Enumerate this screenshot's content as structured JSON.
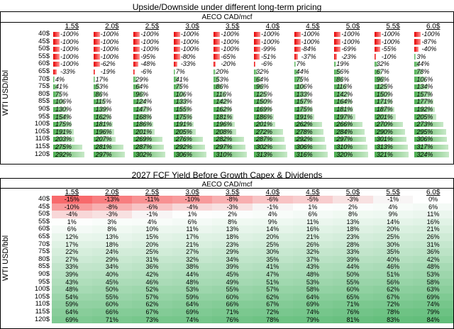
{
  "chart_data": [
    {
      "type": "bar",
      "title": "Upside/Downside under different long-term pricing",
      "subtitle": "AECO CAD/mcf",
      "ylabel": "WTI USD/bbl",
      "columns": [
        "1.5$",
        "2.0$",
        "2.5$",
        "3.0$",
        "3.5$",
        "4.0$",
        "4.5$",
        "5.0$",
        "5.5$",
        "6.0$"
      ],
      "rows": [
        "40$",
        "45$",
        "50$",
        "55$",
        "60$",
        "65$",
        "70$",
        "75$",
        "80$",
        "85$",
        "90$",
        "95$",
        "100$",
        "105$",
        "110$",
        "115$",
        "120$"
      ],
      "values": [
        [
          -100,
          -100,
          -100,
          -100,
          -100,
          -100,
          -100,
          -100,
          -100,
          -100
        ],
        [
          -100,
          -100,
          -100,
          -100,
          -100,
          -100,
          -100,
          -100,
          -100,
          -87
        ],
        [
          -100,
          -100,
          -100,
          -100,
          -100,
          -99,
          -84,
          -69,
          -55,
          -40
        ],
        [
          -100,
          -100,
          -95,
          -80,
          -65,
          -51,
          -37,
          -23,
          -10,
          3
        ],
        [
          -100,
          -62,
          -48,
          -33,
          -20,
          -6,
          7,
          19,
          32,
          44
        ],
        [
          -33,
          -19,
          -6,
          7,
          20,
          32,
          44,
          56,
          67,
          78
        ],
        [
          4,
          17,
          29,
          41,
          53,
          64,
          75,
          86,
          96,
          106
        ],
        [
          41,
          53,
          64,
          75,
          86,
          96,
          106,
          116,
          125,
          134
        ],
        [
          75,
          86,
          96,
          106,
          116,
          125,
          133,
          142,
          150,
          157
        ],
        [
          106,
          115,
          124,
          133,
          142,
          150,
          157,
          164,
          171,
          177
        ],
        [
          130,
          139,
          147,
          155,
          162,
          169,
          175,
          181,
          187,
          192
        ],
        [
          154,
          162,
          168,
          175,
          181,
          186,
          191,
          197,
          201,
          205
        ],
        [
          175,
          181,
          186,
          191,
          196,
          201,
          262,
          266,
          270,
          273
        ],
        [
          191,
          196,
          201,
          205,
          208,
          272,
          278,
          284,
          290,
          295
        ],
        [
          203,
          207,
          269,
          276,
          282,
          287,
          292,
          297,
          301,
          306
        ],
        [
          275,
          281,
          287,
          292,
          297,
          302,
          306,
          310,
          313,
          317
        ],
        [
          292,
          297,
          302,
          306,
          310,
          313,
          316,
          320,
          321,
          324
        ]
      ],
      "value_suffix": "%",
      "grid": false
    },
    {
      "type": "heatmap",
      "title": "2027 FCF Yield Before Growth Capex & Dividends",
      "subtitle": "AECO CAD/mcf",
      "ylabel": "WTI USD/bbl",
      "columns": [
        "1.5$",
        "2.0$",
        "2.5$",
        "3.0$",
        "3.5$",
        "4.0$",
        "4.5$",
        "5.0$",
        "5.5$",
        "6.0$"
      ],
      "rows": [
        "40$",
        "45$",
        "50$",
        "55$",
        "60$",
        "65$",
        "70$",
        "75$",
        "80$",
        "85$",
        "90$",
        "95$",
        "100$",
        "105$",
        "110$",
        "115$",
        "120$"
      ],
      "values": [
        [
          -15,
          -13,
          -11,
          -10,
          -8,
          -6,
          -5,
          -3,
          -1,
          0
        ],
        [
          -10,
          -8,
          -6,
          -4,
          -3,
          -1,
          1,
          2,
          4,
          6
        ],
        [
          -4,
          -3,
          -1,
          1,
          2,
          4,
          6,
          8,
          9,
          11
        ],
        [
          1,
          3,
          4,
          6,
          8,
          9,
          11,
          13,
          14,
          16
        ],
        [
          6,
          8,
          10,
          11,
          13,
          14,
          16,
          18,
          20,
          21
        ],
        [
          12,
          13,
          15,
          17,
          18,
          20,
          21,
          23,
          25,
          26
        ],
        [
          17,
          18,
          20,
          21,
          23,
          25,
          26,
          28,
          30,
          31
        ],
        [
          22,
          24,
          25,
          27,
          29,
          30,
          32,
          33,
          35,
          36
        ],
        [
          27,
          29,
          31,
          32,
          34,
          35,
          37,
          39,
          40,
          42
        ],
        [
          33,
          34,
          36,
          38,
          39,
          41,
          43,
          44,
          46,
          48
        ],
        [
          39,
          40,
          42,
          44,
          45,
          47,
          48,
          50,
          51,
          53
        ],
        [
          43,
          45,
          46,
          48,
          49,
          51,
          53,
          55,
          56,
          58
        ],
        [
          48,
          50,
          52,
          53,
          55,
          57,
          58,
          60,
          62,
          63
        ],
        [
          54,
          55,
          57,
          59,
          60,
          62,
          64,
          65,
          67,
          69
        ],
        [
          59,
          60,
          62,
          64,
          66,
          67,
          69,
          71,
          72,
          74
        ],
        [
          64,
          66,
          67,
          69,
          71,
          72,
          74,
          76,
          78,
          79
        ],
        [
          69,
          71,
          73,
          74,
          76,
          78,
          79,
          81,
          83,
          84
        ]
      ],
      "value_suffix": "%",
      "grid": false
    }
  ]
}
